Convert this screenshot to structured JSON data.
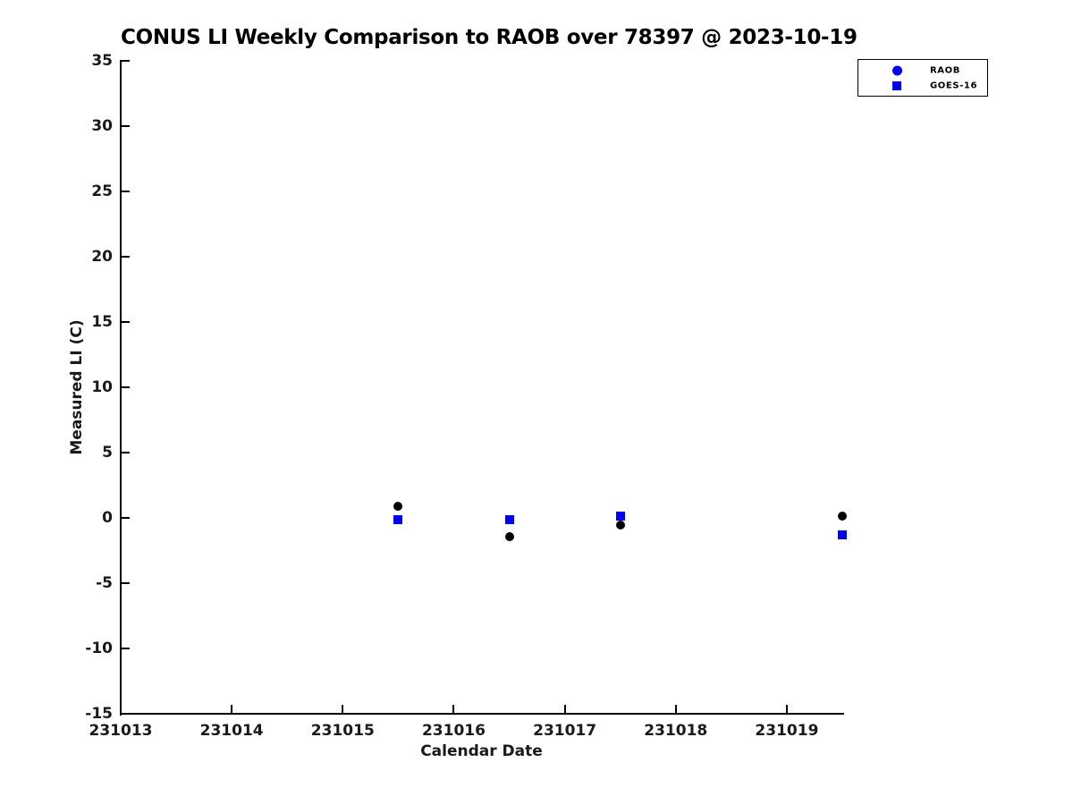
{
  "title": "CONUS LI Weekly Comparison to RAOB over 78397 @ 2023-10-19",
  "chart_data": {
    "type": "scatter",
    "title": "CONUS LI Weekly Comparison to RAOB over 78397 @ 2023-10-19",
    "xlabel": "Calendar Date",
    "ylabel": "Measured LI (C)",
    "xlim": [
      231013,
      231019.5
    ],
    "ylim": [
      -15,
      35
    ],
    "xticks": [
      231013,
      231014,
      231015,
      231016,
      231017,
      231018,
      231019
    ],
    "yticks": [
      35,
      30,
      25,
      20,
      15,
      10,
      5,
      0,
      -5,
      -10,
      -15
    ],
    "grid": false,
    "legend_position": "outside-top-right",
    "series": [
      {
        "name": "RAOB",
        "marker": "circle",
        "plot_color": "#000000",
        "legend_color": "#0000EE",
        "x": [
          231015.5,
          231016.5,
          231017.5,
          231019.5
        ],
        "y": [
          0.9,
          -1.45,
          -0.55,
          0.15
        ]
      },
      {
        "name": "GOES-16",
        "marker": "square",
        "plot_color": "#0000EE",
        "legend_color": "#0000EE",
        "x": [
          231015.5,
          231016.5,
          231017.5,
          231019.5
        ],
        "y": [
          -0.15,
          -0.15,
          0.15,
          -1.3
        ]
      }
    ]
  }
}
